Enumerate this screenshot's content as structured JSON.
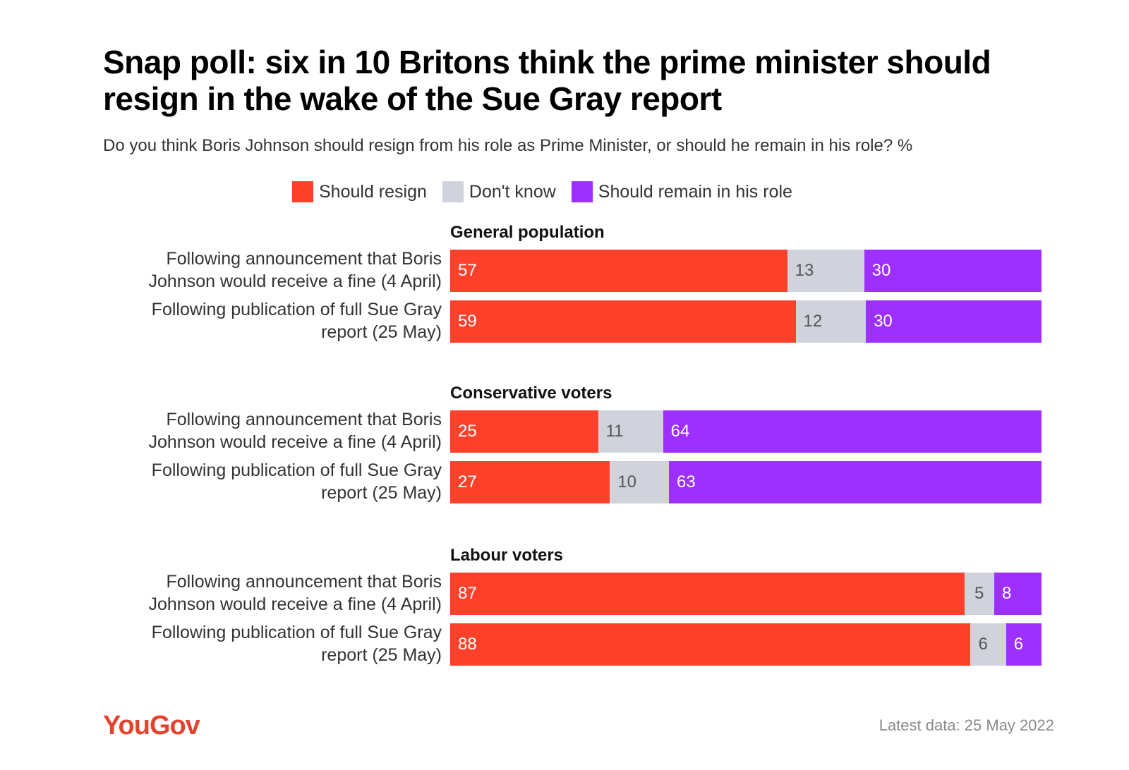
{
  "title": "Snap poll: six in 10 Britons think the prime minister should resign in the wake of the Sue Gray report",
  "subtitle": "Do you think Boris Johnson should resign from his role as Prime Minister, or should he remain in his role? %",
  "footer": {
    "brand": "YouGov",
    "date": "Latest data: 25 May 2022"
  },
  "colors": {
    "resign": "#ff412c",
    "dont_know": "#d0d3db",
    "remain": "#9d30ff"
  },
  "chart_data": {
    "type": "bar",
    "orientation": "horizontal",
    "stacked": true,
    "unit": "%",
    "title": "Snap poll: six in 10 Britons think the prime minister should resign in the wake of the Sue Gray report",
    "legend": [
      {
        "name": "Should resign",
        "color": "#ff412c"
      },
      {
        "name": "Don't know",
        "color": "#d0d3db"
      },
      {
        "name": "Should remain in his role",
        "color": "#9d30ff"
      }
    ],
    "groups": [
      {
        "name": "General population",
        "rows": [
          {
            "label": "Following announcement that Boris Johnson would receive a fine (4 April)",
            "values": [
              57,
              13,
              30
            ]
          },
          {
            "label": "Following publication of full Sue Gray report (25 May)",
            "values": [
              59,
              12,
              30
            ]
          }
        ]
      },
      {
        "name": "Conservative voters",
        "rows": [
          {
            "label": "Following announcement that Boris Johnson would receive a fine (4 April)",
            "values": [
              25,
              11,
              64
            ]
          },
          {
            "label": "Following publication of full Sue Gray report (25 May)",
            "values": [
              27,
              10,
              63
            ]
          }
        ]
      },
      {
        "name": "Labour voters",
        "rows": [
          {
            "label": "Following announcement that Boris Johnson would receive a fine (4 April)",
            "values": [
              87,
              5,
              8
            ]
          },
          {
            "label": "Following publication of full Sue Gray report (25 May)",
            "values": [
              88,
              6,
              6
            ]
          }
        ]
      }
    ]
  }
}
